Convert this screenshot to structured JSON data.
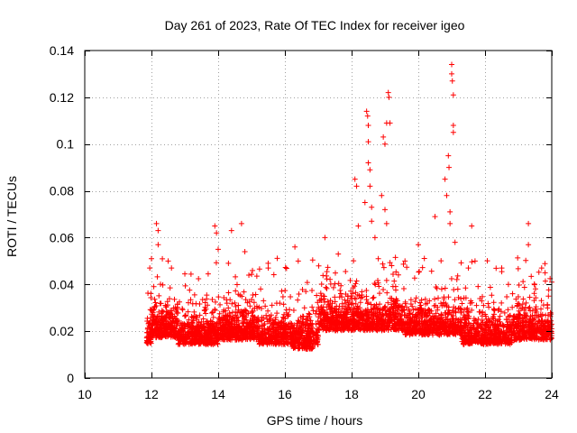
{
  "chart_data": {
    "type": "scatter",
    "title": "Day 261 of 2023, Rate Of TEC Index for receiver igeo",
    "xlabel": "GPS time / hours",
    "ylabel": "ROTI / TECUs",
    "xlim": [
      10,
      24
    ],
    "ylim": [
      0,
      0.14
    ],
    "x_ticks": [
      10,
      12,
      14,
      16,
      18,
      20,
      22,
      24
    ],
    "x_tick_labels": [
      "10",
      "12",
      "14",
      "16",
      "18",
      "20",
      "22",
      "24"
    ],
    "y_ticks": [
      0,
      0.02,
      0.04,
      0.06,
      0.08,
      0.1,
      0.12,
      0.14
    ],
    "y_tick_labels": [
      "0",
      "0.02",
      "0.04",
      "0.06",
      "0.08",
      "0.1",
      "0.12",
      "0.14"
    ],
    "grid": true,
    "marker": "plus",
    "marker_color": "#ff0000",
    "series": [
      {
        "name": "ROTI",
        "time_range": [
          11.85,
          24.0
        ],
        "typical_level": 0.017,
        "spread": 0.006,
        "floor": 0.004,
        "points": [
          {
            "x": 11.95,
            "y": 0.047
          },
          {
            "x": 12.0,
            "y": 0.051
          },
          {
            "x": 12.15,
            "y": 0.066
          },
          {
            "x": 12.2,
            "y": 0.063
          },
          {
            "x": 12.2,
            "y": 0.057
          },
          {
            "x": 12.5,
            "y": 0.05
          },
          {
            "x": 12.6,
            "y": 0.047
          },
          {
            "x": 13.9,
            "y": 0.065
          },
          {
            "x": 13.95,
            "y": 0.062
          },
          {
            "x": 14.0,
            "y": 0.055
          },
          {
            "x": 14.4,
            "y": 0.063
          },
          {
            "x": 14.7,
            "y": 0.066
          },
          {
            "x": 14.8,
            "y": 0.054
          },
          {
            "x": 15.5,
            "y": 0.047
          },
          {
            "x": 16.3,
            "y": 0.056
          },
          {
            "x": 16.4,
            "y": 0.05
          },
          {
            "x": 17.2,
            "y": 0.06
          },
          {
            "x": 17.6,
            "y": 0.053
          },
          {
            "x": 18.1,
            "y": 0.085
          },
          {
            "x": 18.15,
            "y": 0.082
          },
          {
            "x": 18.2,
            "y": 0.065
          },
          {
            "x": 18.4,
            "y": 0.075
          },
          {
            "x": 18.45,
            "y": 0.114
          },
          {
            "x": 18.48,
            "y": 0.112
          },
          {
            "x": 18.5,
            "y": 0.108
          },
          {
            "x": 18.5,
            "y": 0.101
          },
          {
            "x": 18.5,
            "y": 0.092
          },
          {
            "x": 18.55,
            "y": 0.089
          },
          {
            "x": 18.55,
            "y": 0.082
          },
          {
            "x": 18.6,
            "y": 0.073
          },
          {
            "x": 18.6,
            "y": 0.067
          },
          {
            "x": 18.7,
            "y": 0.06
          },
          {
            "x": 18.8,
            "y": 0.051
          },
          {
            "x": 18.9,
            "y": 0.078
          },
          {
            "x": 18.95,
            "y": 0.103
          },
          {
            "x": 19.0,
            "y": 0.1
          },
          {
            "x": 19.0,
            "y": 0.072
          },
          {
            "x": 19.05,
            "y": 0.066
          },
          {
            "x": 19.05,
            "y": 0.109
          },
          {
            "x": 19.1,
            "y": 0.122
          },
          {
            "x": 19.12,
            "y": 0.12
          },
          {
            "x": 19.15,
            "y": 0.109
          },
          {
            "x": 19.2,
            "y": 0.048
          },
          {
            "x": 19.6,
            "y": 0.05
          },
          {
            "x": 20.0,
            "y": 0.057
          },
          {
            "x": 20.5,
            "y": 0.069
          },
          {
            "x": 20.8,
            "y": 0.085
          },
          {
            "x": 20.85,
            "y": 0.078
          },
          {
            "x": 20.9,
            "y": 0.095
          },
          {
            "x": 20.92,
            "y": 0.09
          },
          {
            "x": 20.95,
            "y": 0.071
          },
          {
            "x": 20.95,
            "y": 0.066
          },
          {
            "x": 21.0,
            "y": 0.134
          },
          {
            "x": 21.0,
            "y": 0.13
          },
          {
            "x": 21.02,
            "y": 0.127
          },
          {
            "x": 21.05,
            "y": 0.121
          },
          {
            "x": 21.05,
            "y": 0.108
          },
          {
            "x": 21.05,
            "y": 0.105
          },
          {
            "x": 21.1,
            "y": 0.058
          },
          {
            "x": 21.5,
            "y": 0.047
          },
          {
            "x": 21.6,
            "y": 0.065
          },
          {
            "x": 21.7,
            "y": 0.05
          },
          {
            "x": 22.5,
            "y": 0.047
          },
          {
            "x": 23.3,
            "y": 0.066
          },
          {
            "x": 23.3,
            "y": 0.057
          },
          {
            "x": 23.8,
            "y": 0.045
          },
          {
            "x": 23.9,
            "y": 0.035
          },
          {
            "x": 24.0,
            "y": 0.041
          }
        ]
      }
    ]
  }
}
